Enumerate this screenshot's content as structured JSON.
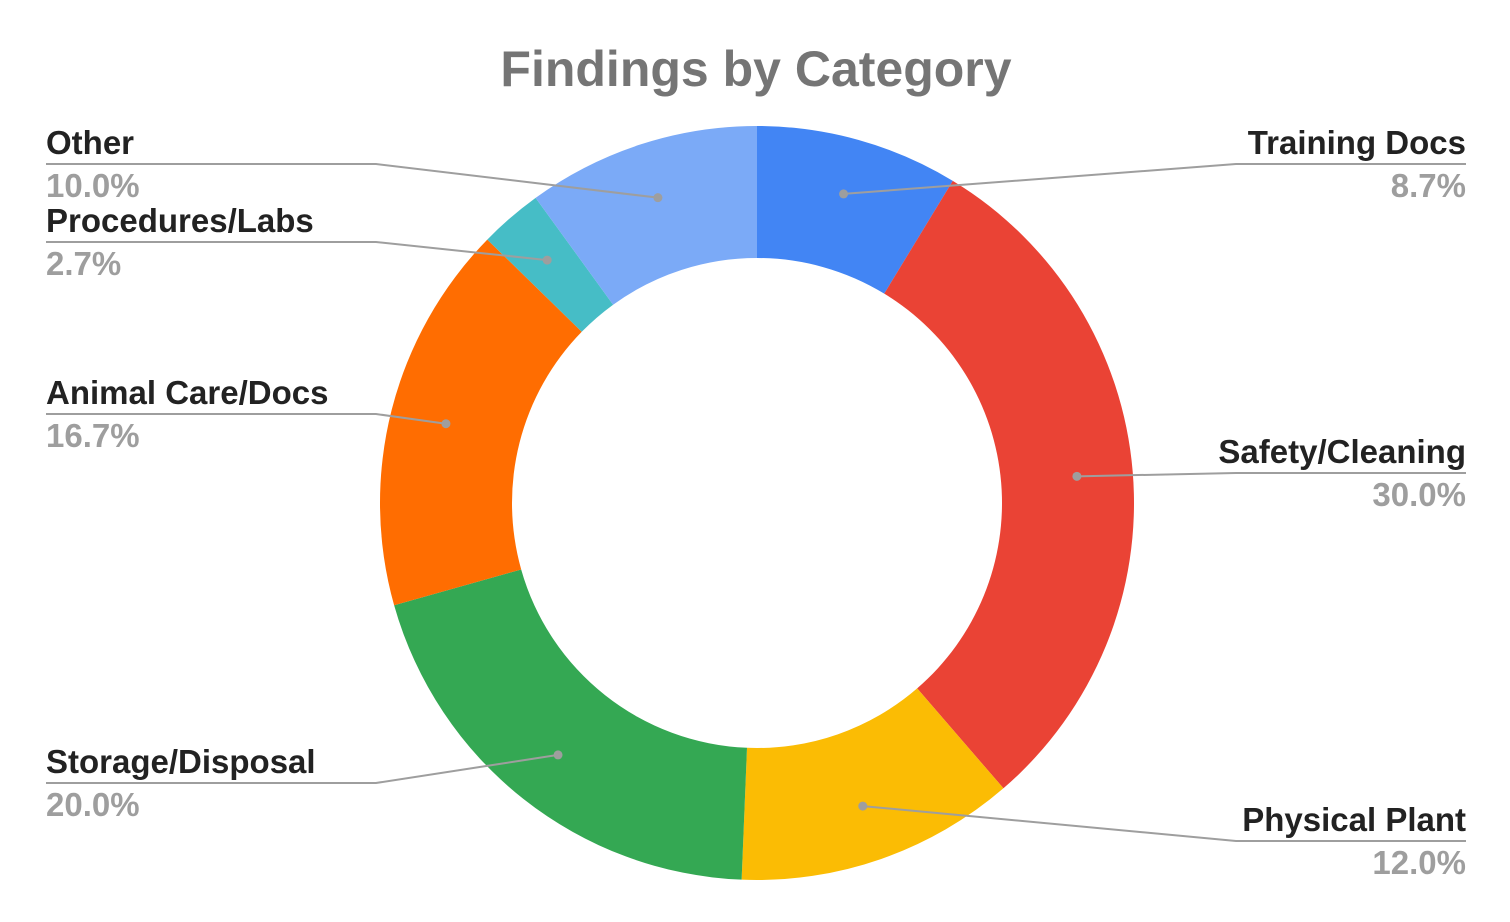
{
  "chart_data": {
    "type": "pie",
    "subtype": "donut",
    "title": "Findings by Category",
    "slices": [
      {
        "label": "Training Docs",
        "value": 8.7,
        "display": "8.7%",
        "color": "#4285F4",
        "side": "right"
      },
      {
        "label": "Safety/Cleaning",
        "value": 30.0,
        "display": "30.0%",
        "color": "#EA4335",
        "side": "right"
      },
      {
        "label": "Physical Plant",
        "value": 12.0,
        "display": "12.0%",
        "color": "#FBBC04",
        "side": "right"
      },
      {
        "label": "Storage/Disposal",
        "value": 20.0,
        "display": "20.0%",
        "color": "#34A853",
        "side": "left"
      },
      {
        "label": "Animal Care/Docs",
        "value": 16.7,
        "display": "16.7%",
        "color": "#FF6D01",
        "side": "left"
      },
      {
        "label": "Procedures/Labs",
        "value": 2.7,
        "display": "2.7%",
        "color": "#46BDC6",
        "side": "left"
      },
      {
        "label": "Other",
        "value": 10.0,
        "display": "10.0%",
        "color": "#7BAAF7",
        "side": "left"
      }
    ],
    "legend": "none",
    "labels": "outside with leader lines"
  }
}
